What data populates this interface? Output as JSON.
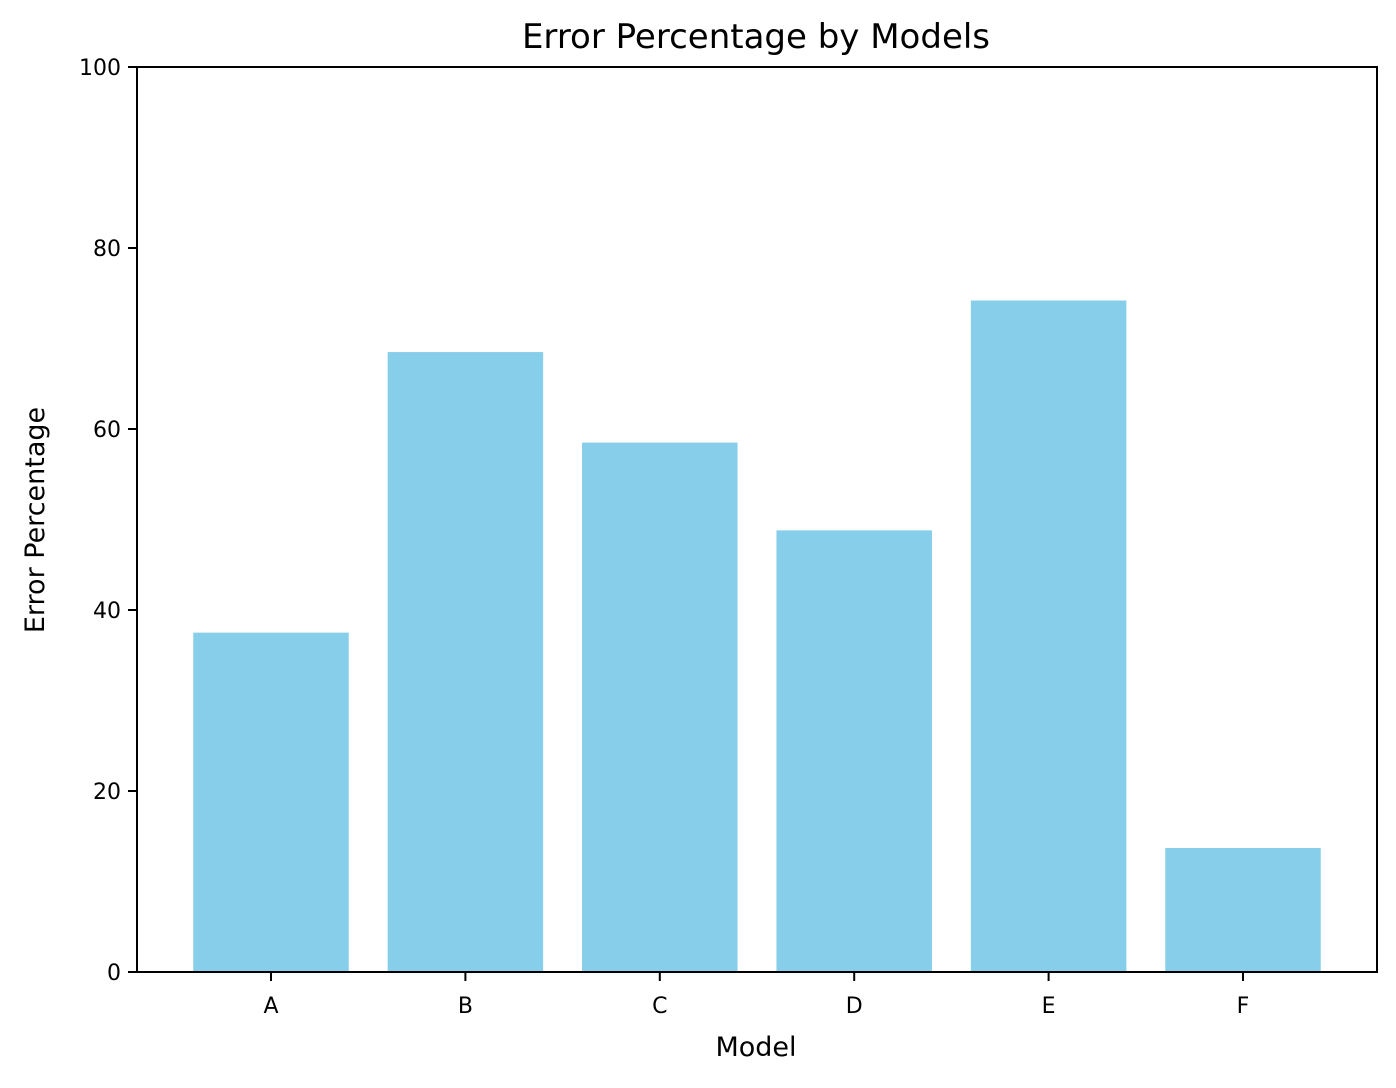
{
  "chart_data": {
    "type": "bar",
    "title": "Error Percentage by Models",
    "xlabel": "Model",
    "ylabel": "Error Percentage",
    "categories": [
      "A",
      "B",
      "C",
      "D",
      "E",
      "F"
    ],
    "values": [
      37.5,
      68.5,
      58.5,
      48.8,
      74.2,
      13.7
    ],
    "ylim": [
      0,
      100
    ],
    "yticks": [
      "0",
      "20",
      "40",
      "60",
      "80",
      "100"
    ],
    "bar_color": "#87CEEB",
    "grid": false,
    "legend": "none"
  }
}
